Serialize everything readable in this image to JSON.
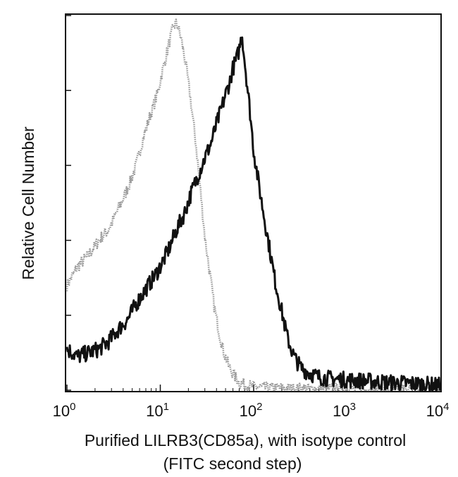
{
  "chart_data": {
    "type": "line",
    "title": "",
    "xlabel": "Purified LILRB3(CD85a), with isotype control",
    "xlabel_line2": "(FITC second step)",
    "ylabel": "Relative Cell Number",
    "x_scale": "log",
    "xlim": [
      1,
      10000
    ],
    "ylim": [
      0,
      100
    ],
    "x_ticks": [
      {
        "value": 1,
        "base": "10",
        "exp": "0"
      },
      {
        "value": 10,
        "base": "10",
        "exp": "1"
      },
      {
        "value": 100,
        "base": "10",
        "exp": "2"
      },
      {
        "value": 1000,
        "base": "10",
        "exp": "3"
      },
      {
        "value": 10000,
        "base": "10",
        "exp": "4"
      }
    ],
    "y_tick_values": [
      0,
      20,
      40,
      60,
      80,
      100
    ],
    "grid": false,
    "legend": "none",
    "series": [
      {
        "color": "#9a9a9a",
        "style": "isotype-dotted",
        "x": [
          1,
          1.3,
          1.7,
          2.2,
          2.8,
          3.5,
          4.5,
          5.5,
          6.5,
          7.5,
          8.5,
          9.5,
          10.5,
          11.5,
          12.5,
          13.5,
          14.5,
          15.5,
          17,
          19,
          21,
          24,
          27,
          30,
          34,
          38,
          43,
          48,
          55,
          62,
          70,
          80,
          95,
          120,
          160,
          250,
          400,
          700,
          1500,
          4000,
          10000
        ],
        "y": [
          28,
          33,
          36,
          40,
          43,
          48,
          54,
          60,
          67,
          72,
          76,
          80,
          85,
          89,
          93,
          96,
          98,
          97,
          93,
          86,
          78,
          66,
          53,
          41,
          31,
          22,
          15,
          10,
          6,
          4,
          2,
          1.5,
          1,
          0.7,
          0.5,
          0.4,
          0.3,
          0.3,
          0.2,
          0.2,
          0.2
        ]
      },
      {
        "color": "#111111",
        "style": "stained-solid",
        "x": [
          1,
          1.3,
          1.7,
          2.2,
          2.8,
          3.5,
          4.5,
          5.5,
          7,
          9,
          11,
          13,
          15,
          18,
          21,
          25,
          30,
          35,
          40,
          45,
          50,
          55,
          60,
          65,
          70,
          75,
          80,
          90,
          100,
          115,
          130,
          150,
          170,
          200,
          230,
          270,
          320,
          400,
          500,
          700,
          1000,
          1500,
          2000,
          3000,
          5000,
          7000,
          10000
        ],
        "y": [
          11,
          9,
          10,
          11,
          13,
          16,
          19,
          23,
          27,
          31,
          35,
          39,
          43,
          47,
          52,
          57,
          62,
          66,
          71,
          75,
          79,
          82,
          86,
          88,
          91,
          95,
          88,
          76,
          64,
          54,
          46,
          37,
          29,
          21,
          14,
          9,
          6,
          4.5,
          3.5,
          3,
          2.8,
          2.5,
          2.3,
          2,
          1.8,
          1.5,
          1.2
        ]
      }
    ]
  }
}
